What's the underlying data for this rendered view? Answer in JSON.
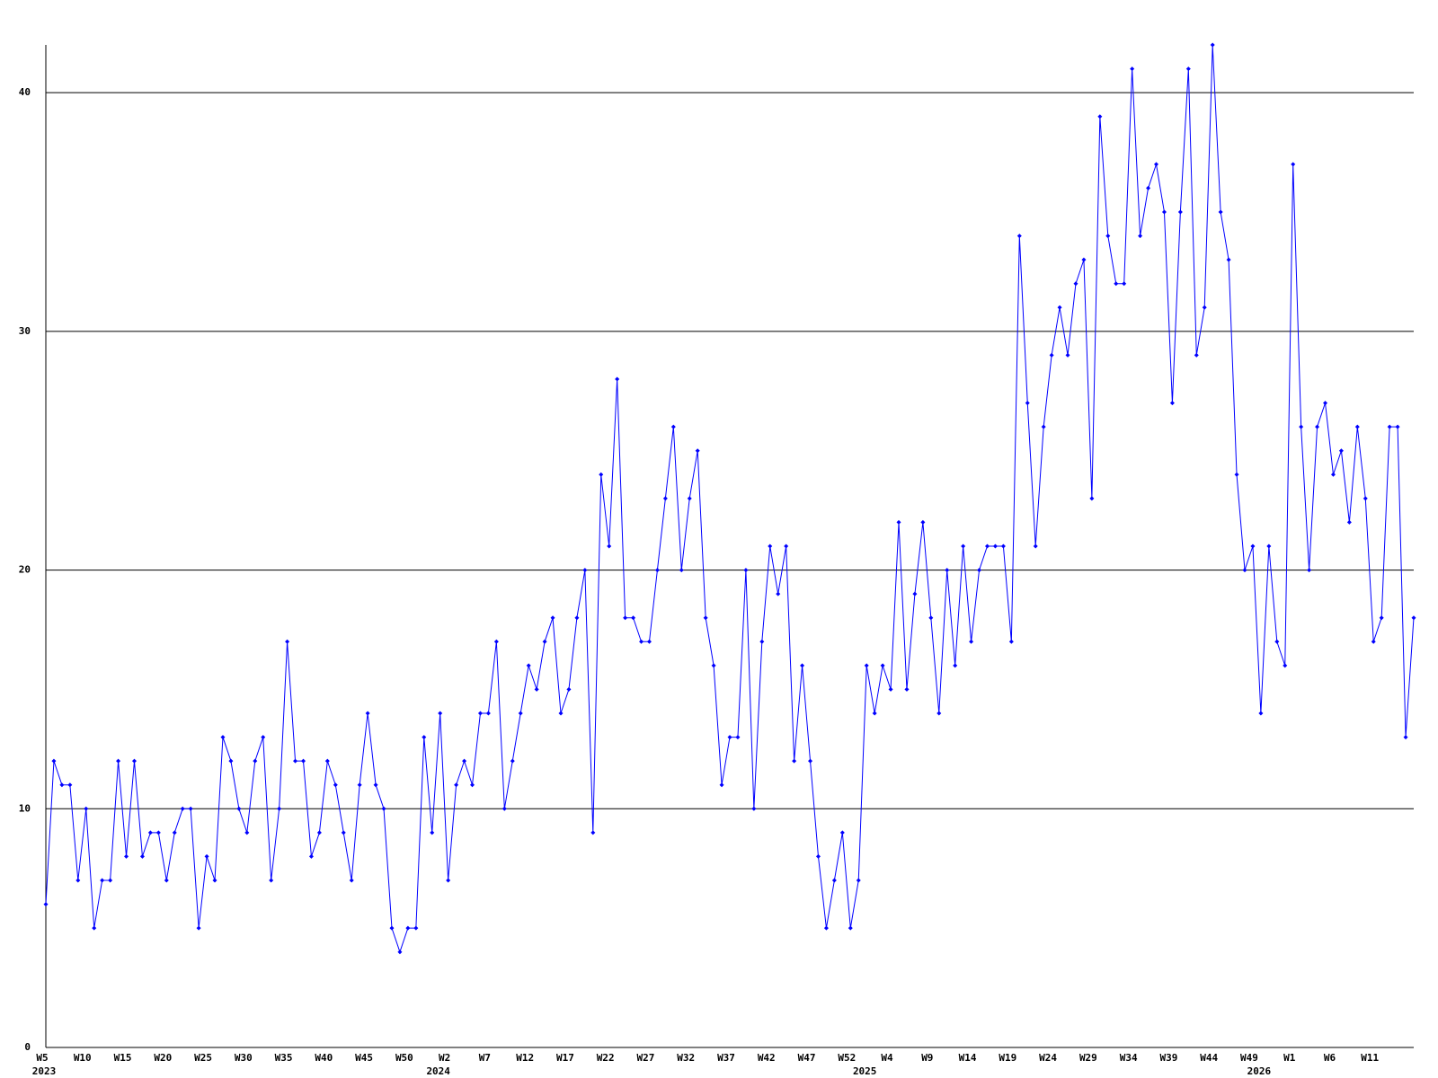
{
  "chart_data": {
    "type": "line",
    "categories": [
      "W5",
      null,
      null,
      null,
      null,
      "W10",
      null,
      null,
      null,
      null,
      "W15",
      null,
      null,
      null,
      null,
      "W20",
      null,
      null,
      null,
      null,
      "W25",
      null,
      null,
      null,
      null,
      "W30",
      null,
      null,
      null,
      null,
      "W35",
      null,
      null,
      null,
      null,
      "W40",
      null,
      null,
      null,
      null,
      "W45",
      null,
      null,
      null,
      null,
      "W50",
      null,
      null,
      null,
      null,
      "W2",
      null,
      null,
      null,
      null,
      "W7",
      null,
      null,
      null,
      null,
      "W12",
      null,
      null,
      null,
      null,
      "W17",
      null,
      null,
      null,
      null,
      "W22",
      null,
      null,
      null,
      null,
      "W27",
      null,
      null,
      null,
      null,
      "W32",
      null,
      null,
      null,
      null,
      "W37",
      null,
      null,
      null,
      null,
      "W42",
      null,
      null,
      null,
      null,
      "W47",
      null,
      null,
      null,
      null,
      "W52",
      null,
      null,
      null,
      null,
      "W4",
      null,
      null,
      null,
      null,
      "W9",
      null,
      null,
      null,
      null,
      "W14",
      null,
      null,
      null,
      null,
      "W19",
      null,
      null,
      null,
      null,
      "W24",
      null,
      null,
      null,
      null,
      "W29",
      null,
      null,
      null,
      null,
      "W34",
      null,
      null,
      null,
      null,
      "W39",
      null,
      null,
      null,
      null,
      "W44",
      null,
      null,
      null,
      null,
      "W49",
      null,
      null,
      null,
      null,
      "W1",
      null,
      null,
      null,
      null,
      "W6",
      null,
      null,
      null,
      null,
      "W11",
      null,
      null,
      null,
      null,
      null
    ],
    "years": [
      "2023",
      null,
      null,
      null,
      null,
      null,
      null,
      null,
      null,
      null,
      null,
      null,
      null,
      null,
      null,
      null,
      null,
      null,
      null,
      null,
      null,
      null,
      null,
      null,
      null,
      null,
      null,
      null,
      null,
      null,
      null,
      null,
      null,
      null,
      null,
      null,
      null,
      null,
      null,
      null,
      null,
      null,
      null,
      null,
      null,
      null,
      null,
      null,
      null,
      "2024",
      null,
      null,
      null,
      null,
      null,
      null,
      null,
      null,
      null,
      null,
      null,
      null,
      null,
      null,
      null,
      null,
      null,
      null,
      null,
      null,
      null,
      null,
      null,
      null,
      null,
      null,
      null,
      null,
      null,
      null,
      null,
      null,
      null,
      null,
      null,
      null,
      null,
      null,
      null,
      null,
      null,
      null,
      null,
      null,
      null,
      null,
      null,
      null,
      null,
      null,
      null,
      null,
      "2025",
      null,
      null,
      null,
      null,
      null,
      null,
      null,
      null,
      null,
      null,
      null,
      null,
      null,
      null,
      null,
      null,
      null,
      null,
      null,
      null,
      null,
      null,
      null,
      null,
      null,
      null,
      null,
      null,
      null,
      null,
      null,
      null,
      null,
      null,
      null,
      null,
      null,
      null,
      null,
      null,
      null,
      null,
      null,
      null,
      null,
      null,
      null,
      null,
      "2026",
      null,
      null,
      null,
      null,
      null,
      null,
      null,
      null,
      null,
      null,
      null,
      null,
      null,
      null,
      null
    ],
    "series": [
      {
        "color": "#0000ff",
        "values": [
          6,
          12,
          11,
          11,
          7,
          10,
          5,
          7,
          7,
          12,
          8,
          12,
          8,
          9,
          9,
          7,
          9,
          10,
          10,
          5,
          8,
          7,
          13,
          12,
          10,
          9,
          12,
          13,
          7,
          10,
          17,
          12,
          12,
          8,
          9,
          12,
          11,
          9,
          7,
          11,
          14,
          11,
          10,
          5,
          4,
          5,
          5,
          13,
          9,
          14,
          7,
          11,
          12,
          11,
          14,
          14,
          17,
          10,
          12,
          14,
          16,
          15,
          17,
          18,
          14,
          15,
          18,
          20,
          9,
          24,
          21,
          28,
          18,
          18,
          17,
          17,
          20,
          23,
          26,
          20,
          23,
          25,
          18,
          16,
          11,
          13,
          13,
          20,
          10,
          17,
          21,
          19,
          21,
          12,
          16,
          12,
          8,
          5,
          7,
          9,
          5,
          7,
          16,
          14,
          16,
          15,
          22,
          15,
          19,
          22,
          18,
          14,
          20,
          16,
          21,
          17,
          20,
          21,
          21,
          21,
          17,
          34,
          27,
          21,
          26,
          29,
          31,
          29,
          32,
          33,
          23,
          39,
          34,
          32,
          32,
          41,
          34,
          36,
          37,
          35,
          27,
          35,
          41,
          29,
          31,
          42,
          35,
          33,
          24,
          20,
          21,
          14,
          21,
          17,
          16,
          37,
          26,
          20,
          26,
          27,
          24,
          25,
          22,
          26,
          23,
          17,
          18,
          26,
          26,
          13,
          18
        ]
      }
    ],
    "ylim": [
      0,
      42
    ],
    "yticks": [
      0,
      10,
      20,
      30,
      40
    ],
    "grid": true
  }
}
